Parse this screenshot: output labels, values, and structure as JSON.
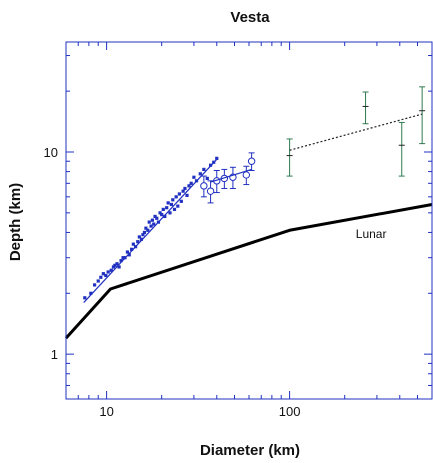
{
  "chart_data": {
    "type": "scatter",
    "title": "Vesta",
    "xlabel": "Diameter (km)",
    "ylabel": "Depth (km)",
    "x_scale": "log",
    "y_scale": "log",
    "xlim": [
      6,
      600
    ],
    "ylim": [
      0.6,
      35
    ],
    "x_ticks": [
      {
        "value": 10,
        "label": "10"
      },
      {
        "value": 100,
        "label": "100"
      }
    ],
    "y_ticks": [
      {
        "value": 1,
        "label": "1"
      },
      {
        "value": 10,
        "label": "10"
      }
    ],
    "grid": false,
    "legend": "none",
    "colors": {
      "small_craters": "#2030c0",
      "large_basins": "#2e7a4e",
      "lunar": "#000000",
      "axes": "#2030c0"
    },
    "annotations": [
      {
        "text": "Lunar",
        "x": 230,
        "y": 3.75
      }
    ],
    "series": [
      {
        "name": "Lunar",
        "kind": "line",
        "x": [
          6,
          10.5,
          100,
          600
        ],
        "y": [
          1.2,
          2.1,
          4.1,
          5.5
        ]
      },
      {
        "kind": "points",
        "marker": "square",
        "x": [
          7.6,
          8.2,
          8.6,
          9.0,
          9.3,
          9.6,
          9.9,
          10.2,
          10.6,
          10.9,
          11.1,
          11.4,
          11.7,
          12.0,
          12.3,
          12.6,
          13.0,
          13.3,
          13.7,
          14.0,
          14.4,
          14.8,
          15.1,
          15.5,
          15.8,
          16.1,
          16.4,
          16.8,
          17.1,
          17.5,
          17.8,
          18.1,
          18.4,
          18.8,
          19.2,
          19.6,
          20.0,
          20.4,
          20.8,
          21.3,
          21.7,
          22.2,
          22.6,
          23.0,
          23.5,
          24.0,
          24.5,
          25.0,
          25.6,
          26.2,
          26.8,
          27.5,
          28.2,
          29.0,
          30.0,
          31.0,
          32.5,
          34.0,
          35.5,
          37.0,
          38.5,
          40.0
        ],
        "y": [
          1.9,
          2.0,
          2.2,
          2.3,
          2.4,
          2.5,
          2.45,
          2.55,
          2.6,
          2.7,
          2.75,
          2.8,
          2.7,
          2.9,
          3.0,
          3.0,
          3.2,
          3.1,
          3.3,
          3.5,
          3.4,
          3.6,
          3.8,
          3.7,
          3.9,
          4.0,
          4.2,
          4.1,
          4.5,
          4.3,
          4.6,
          4.4,
          4.8,
          4.7,
          4.5,
          5.0,
          4.9,
          5.2,
          4.8,
          5.3,
          5.6,
          5.0,
          5.5,
          5.8,
          5.2,
          6.0,
          5.4,
          6.2,
          5.7,
          6.4,
          6.6,
          6.1,
          6.8,
          7.0,
          7.5,
          7.2,
          7.8,
          8.2,
          7.4,
          8.6,
          8.9,
          9.3
        ]
      },
      {
        "kind": "points_with_error",
        "marker": "circle",
        "x": [
          34,
          37,
          40,
          44,
          49,
          58,
          62
        ],
        "y": [
          6.8,
          6.4,
          7.2,
          7.4,
          7.5,
          7.7,
          9.0
        ],
        "err": [
          0.8,
          0.8,
          0.9,
          0.8,
          0.9,
          0.8,
          0.9
        ]
      },
      {
        "kind": "points_with_error",
        "marker": "cross",
        "x": [
          100,
          260,
          410,
          530
        ],
        "y": [
          9.6,
          16.8,
          10.8,
          16.0
        ],
        "err": [
          2.0,
          3.0,
          3.2,
          5.0
        ]
      },
      {
        "kind": "fit",
        "style": "solid",
        "x": [
          7.5,
          40
        ],
        "y": [
          1.8,
          9.2
        ]
      },
      {
        "kind": "fit",
        "style": "solid",
        "x": [
          37,
          62
        ],
        "y": [
          7.1,
          8.2
        ]
      },
      {
        "kind": "fit",
        "style": "dotted",
        "x": [
          100,
          530
        ],
        "y": [
          10.2,
          15.4
        ]
      }
    ]
  }
}
